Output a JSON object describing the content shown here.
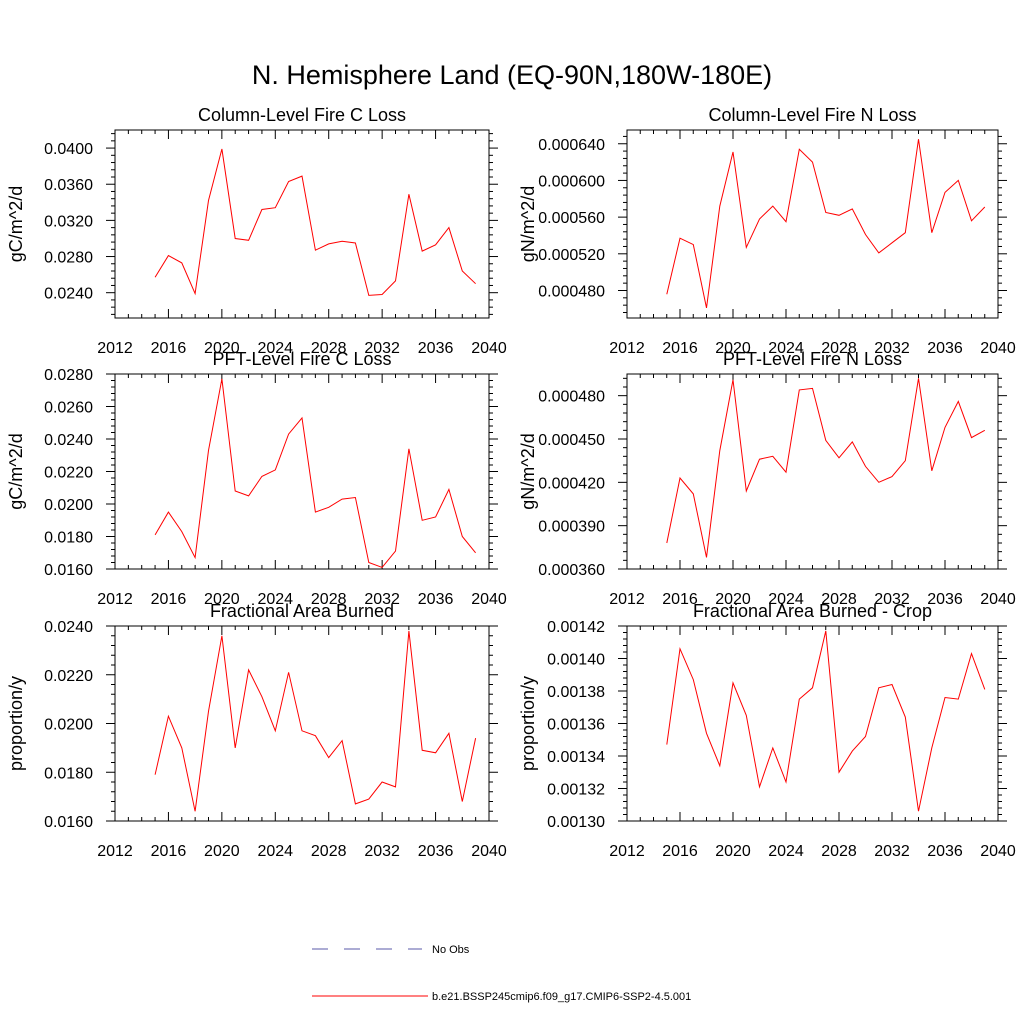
{
  "title": "N. Hemisphere Land (EQ-90N,180W-180E)",
  "chart_data": [
    {
      "type": "line",
      "title": "Column-Level Fire C Loss",
      "ylabel": "gC/m^2/d",
      "xlim": [
        2012,
        2040
      ],
      "ylim": [
        0.0212,
        0.042
      ],
      "xticks": [
        2012,
        2016,
        2020,
        2024,
        2028,
        2032,
        2036,
        2040
      ],
      "xtick_labels": [
        "2012",
        "2016",
        "2020",
        "2024",
        "2028",
        "2032",
        "2036",
        "2040"
      ],
      "yticks": [
        0.024,
        0.028,
        0.032,
        0.036,
        0.04
      ],
      "ytick_labels": [
        "0.0240",
        "0.0280",
        "0.0320",
        "0.0360",
        "0.0400"
      ],
      "x": [
        2015,
        2016,
        2017,
        2018,
        2019,
        2020,
        2021,
        2022,
        2023,
        2024,
        2025,
        2026,
        2027,
        2028,
        2029,
        2030,
        2031,
        2032,
        2033,
        2034,
        2035,
        2036,
        2037,
        2038,
        2039
      ],
      "series": [
        {
          "values": [
            0.0257,
            0.0281,
            0.0273,
            0.0239,
            0.0342,
            0.0399,
            0.03,
            0.0298,
            0.0332,
            0.0334,
            0.0363,
            0.0369,
            0.0287,
            0.0294,
            0.0297,
            0.0295,
            0.0237,
            0.0238,
            0.0253,
            0.0349,
            0.0286,
            0.0293,
            0.0312,
            0.0264,
            0.025
          ]
        }
      ]
    },
    {
      "type": "line",
      "title": "Column-Level Fire N Loss",
      "ylabel": "gN/m^2/d",
      "xlim": [
        2012,
        2040
      ],
      "ylim": [
        0.00045,
        0.000655
      ],
      "xticks": [
        2012,
        2016,
        2020,
        2024,
        2028,
        2032,
        2036,
        2040
      ],
      "xtick_labels": [
        "2012",
        "2016",
        "2020",
        "2024",
        "2028",
        "2032",
        "2036",
        "2040"
      ],
      "yticks": [
        0.00048,
        0.00052,
        0.00056,
        0.0006,
        0.00064
      ],
      "ytick_labels": [
        "0.000480",
        "0.000520",
        "0.000560",
        "0.000600",
        "0.000640"
      ],
      "x": [
        2015,
        2016,
        2017,
        2018,
        2019,
        2020,
        2021,
        2022,
        2023,
        2024,
        2025,
        2026,
        2027,
        2028,
        2029,
        2030,
        2031,
        2032,
        2033,
        2034,
        2035,
        2036,
        2037,
        2038,
        2039
      ],
      "series": [
        {
          "values": [
            0.000476,
            0.000537,
            0.00053,
            0.000461,
            0.000572,
            0.000631,
            0.000527,
            0.000558,
            0.000572,
            0.000555,
            0.000634,
            0.00062,
            0.000565,
            0.000562,
            0.000569,
            0.000541,
            0.000521,
            0.000532,
            0.000543,
            0.000645,
            0.000543,
            0.000587,
            0.0006,
            0.000556,
            0.000571
          ]
        }
      ]
    },
    {
      "type": "line",
      "title": "PFT-Level Fire C Loss",
      "ylabel": "gC/m^2/d",
      "xlim": [
        2012,
        2040
      ],
      "ylim": [
        0.016,
        0.028
      ],
      "xticks": [
        2012,
        2016,
        2020,
        2024,
        2028,
        2032,
        2036,
        2040
      ],
      "xtick_labels": [
        "2012",
        "2016",
        "2020",
        "2024",
        "2028",
        "2032",
        "2036",
        "2040"
      ],
      "yticks": [
        0.016,
        0.018,
        0.02,
        0.022,
        0.024,
        0.026,
        0.028
      ],
      "ytick_labels": [
        "0.0160",
        "0.0180",
        "0.0200",
        "0.0220",
        "0.0240",
        "0.0260",
        "0.0280"
      ],
      "x": [
        2015,
        2016,
        2017,
        2018,
        2019,
        2020,
        2021,
        2022,
        2023,
        2024,
        2025,
        2026,
        2027,
        2028,
        2029,
        2030,
        2031,
        2032,
        2033,
        2034,
        2035,
        2036,
        2037,
        2038,
        2039
      ],
      "series": [
        {
          "values": [
            0.0181,
            0.0195,
            0.0183,
            0.0167,
            0.0233,
            0.0277,
            0.0208,
            0.0205,
            0.0217,
            0.0221,
            0.0243,
            0.0253,
            0.0195,
            0.0198,
            0.0203,
            0.0204,
            0.0164,
            0.0161,
            0.0171,
            0.0234,
            0.019,
            0.0192,
            0.0209,
            0.018,
            0.017
          ]
        }
      ]
    },
    {
      "type": "line",
      "title": "PFT-Level Fire N Loss",
      "ylabel": "gN/m^2/d",
      "xlim": [
        2012,
        2040
      ],
      "ylim": [
        0.00036,
        0.000495
      ],
      "xticks": [
        2012,
        2016,
        2020,
        2024,
        2028,
        2032,
        2036,
        2040
      ],
      "xtick_labels": [
        "2012",
        "2016",
        "2020",
        "2024",
        "2028",
        "2032",
        "2036",
        "2040"
      ],
      "yticks": [
        0.00036,
        0.00039,
        0.00042,
        0.00045,
        0.00048
      ],
      "ytick_labels": [
        "0.000360",
        "0.000390",
        "0.000420",
        "0.000450",
        "0.000480"
      ],
      "x": [
        2015,
        2016,
        2017,
        2018,
        2019,
        2020,
        2021,
        2022,
        2023,
        2024,
        2025,
        2026,
        2027,
        2028,
        2029,
        2030,
        2031,
        2032,
        2033,
        2034,
        2035,
        2036,
        2037,
        2038,
        2039
      ],
      "series": [
        {
          "values": [
            0.000378,
            0.000423,
            0.000412,
            0.000368,
            0.000442,
            0.000491,
            0.000414,
            0.000436,
            0.000438,
            0.000427,
            0.000484,
            0.000485,
            0.000449,
            0.000437,
            0.000448,
            0.000431,
            0.00042,
            0.000424,
            0.000435,
            0.000492,
            0.000428,
            0.000458,
            0.000476,
            0.000451,
            0.000456
          ]
        }
      ]
    },
    {
      "type": "line",
      "title": "Fractional Area Burned",
      "ylabel": "proportion/y",
      "xlim": [
        2012,
        2040
      ],
      "ylim": [
        0.016,
        0.024
      ],
      "xticks": [
        2012,
        2016,
        2020,
        2024,
        2028,
        2032,
        2036,
        2040
      ],
      "xtick_labels": [
        "2012",
        "2016",
        "2020",
        "2024",
        "2028",
        "2032",
        "2036",
        "2040"
      ],
      "yticks": [
        0.016,
        0.018,
        0.02,
        0.022,
        0.024
      ],
      "ytick_labels": [
        "0.0160",
        "0.0180",
        "0.0200",
        "0.0220",
        "0.0240"
      ],
      "x": [
        2015,
        2016,
        2017,
        2018,
        2019,
        2020,
        2021,
        2022,
        2023,
        2024,
        2025,
        2026,
        2027,
        2028,
        2029,
        2030,
        2031,
        2032,
        2033,
        2034,
        2035,
        2036,
        2037,
        2038,
        2039
      ],
      "series": [
        {
          "values": [
            0.0179,
            0.0203,
            0.019,
            0.0164,
            0.0205,
            0.0236,
            0.019,
            0.0222,
            0.0211,
            0.0197,
            0.0221,
            0.0197,
            0.0195,
            0.0186,
            0.0193,
            0.0167,
            0.0169,
            0.0176,
            0.0174,
            0.0238,
            0.0189,
            0.0188,
            0.0196,
            0.0168,
            0.0194
          ]
        }
      ]
    },
    {
      "type": "line",
      "title": "Fractional Area Burned - Crop",
      "ylabel": "proportion/y",
      "xlim": [
        2012,
        2040
      ],
      "ylim": [
        0.0013,
        0.00142
      ],
      "xticks": [
        2012,
        2016,
        2020,
        2024,
        2028,
        2032,
        2036,
        2040
      ],
      "xtick_labels": [
        "2012",
        "2016",
        "2020",
        "2024",
        "2028",
        "2032",
        "2036",
        "2040"
      ],
      "yticks": [
        0.0013,
        0.00132,
        0.00134,
        0.00136,
        0.00138,
        0.0014,
        0.00142
      ],
      "ytick_labels": [
        "0.00130",
        "0.00132",
        "0.00134",
        "0.00136",
        "0.00138",
        "0.00140",
        "0.00142"
      ],
      "x": [
        2015,
        2016,
        2017,
        2018,
        2019,
        2020,
        2021,
        2022,
        2023,
        2024,
        2025,
        2026,
        2027,
        2028,
        2029,
        2030,
        2031,
        2032,
        2033,
        2034,
        2035,
        2036,
        2037,
        2038,
        2039
      ],
      "series": [
        {
          "values": [
            0.001347,
            0.001406,
            0.001387,
            0.001354,
            0.001334,
            0.001385,
            0.001365,
            0.001321,
            0.001345,
            0.001324,
            0.001375,
            0.001382,
            0.001417,
            0.00133,
            0.001343,
            0.001352,
            0.001382,
            0.001384,
            0.001364,
            0.001306,
            0.001345,
            0.001376,
            0.001375,
            0.001403,
            0.001381
          ]
        }
      ]
    }
  ],
  "legend": {
    "items": [
      {
        "label": "No Obs",
        "style": "dashed",
        "color": "#5a5aa8"
      },
      {
        "label": "b.e21.BSSP245cmip6.f09_g17.CMIP6-SSP2-4.5.001",
        "style": "solid",
        "color": "#ff0000"
      }
    ]
  }
}
